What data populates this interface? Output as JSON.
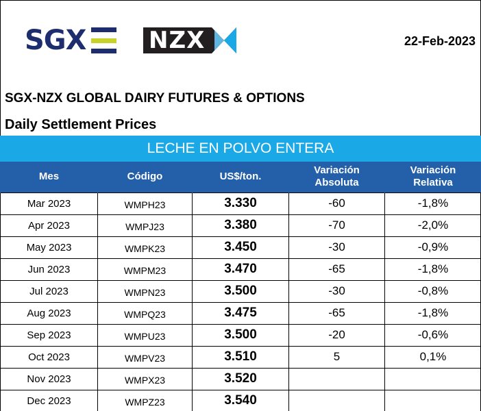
{
  "header": {
    "sgx_logo": "SGX",
    "sgx_bar_colors": [
      "#1d2d6e",
      "#c7d22a",
      "#1d2d6e"
    ],
    "nzx_logo": "NZX",
    "date": "22-Feb-2023"
  },
  "titles": {
    "main": "SGX-NZX GLOBAL DAIRY FUTURES & OPTIONS",
    "sub": "Daily Settlement Prices",
    "banner": "LECHE EN POLVO ENTERA"
  },
  "colors": {
    "banner": "#1aa9e6",
    "header_row": "#245fa9"
  },
  "table": {
    "headers": {
      "mes": "Mes",
      "codigo": "Código",
      "precio": "US$/ton.",
      "var_abs_1": "Variación",
      "var_abs_2": "Absoluta",
      "var_rel_1": "Variación",
      "var_rel_2": "Relativa"
    },
    "rows": [
      {
        "mes": "Mar 2023",
        "codigo": "WMPH23",
        "precio": "3.330",
        "abs": "-60",
        "rel": "-1,8%"
      },
      {
        "mes": "Apr 2023",
        "codigo": "WMPJ23",
        "precio": "3.380",
        "abs": "-70",
        "rel": "-2,0%"
      },
      {
        "mes": "May 2023",
        "codigo": "WMPK23",
        "precio": "3.450",
        "abs": "-30",
        "rel": "-0,9%"
      },
      {
        "mes": "Jun 2023",
        "codigo": "WMPM23",
        "precio": "3.470",
        "abs": "-65",
        "rel": "-1,8%"
      },
      {
        "mes": "Jul 2023",
        "codigo": "WMPN23",
        "precio": "3.500",
        "abs": "-30",
        "rel": "-0,8%"
      },
      {
        "mes": "Aug 2023",
        "codigo": "WMPQ23",
        "precio": "3.475",
        "abs": "-65",
        "rel": "-1,8%"
      },
      {
        "mes": "Sep 2023",
        "codigo": "WMPU23",
        "precio": "3.500",
        "abs": "-20",
        "rel": "-0,6%"
      },
      {
        "mes": "Oct 2023",
        "codigo": "WMPV23",
        "precio": "3.510",
        "abs": "5",
        "rel": "0,1%"
      },
      {
        "mes": "Nov 2023",
        "codigo": "WMPX23",
        "precio": "3.520",
        "abs": "",
        "rel": ""
      },
      {
        "mes": "Dec 2023",
        "codigo": "WMPZ23",
        "precio": "3.540",
        "abs": "",
        "rel": ""
      }
    ]
  }
}
